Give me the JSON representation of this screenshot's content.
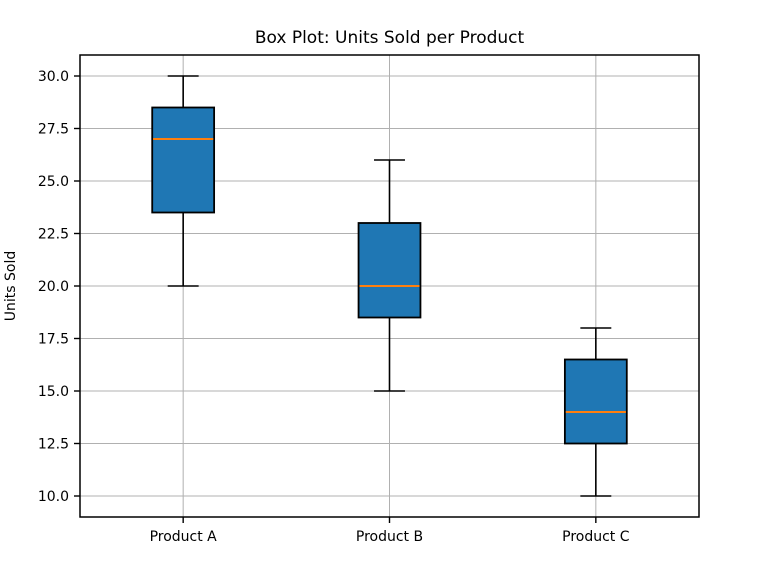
{
  "chart_data": {
    "type": "box",
    "title": "Box Plot: Units Sold per Product",
    "xlabel": "",
    "ylabel": "Units Sold",
    "categories": [
      "Product A",
      "Product B",
      "Product C"
    ],
    "series": [
      {
        "name": "Product A",
        "position": 1,
        "whisker_low": 20.0,
        "q1": 23.5,
        "median": 27.0,
        "q3": 28.5,
        "whisker_high": 30.0
      },
      {
        "name": "Product B",
        "position": 2,
        "whisker_low": 15.0,
        "q1": 18.5,
        "median": 20.0,
        "q3": 23.0,
        "whisker_high": 26.0
      },
      {
        "name": "Product C",
        "position": 3,
        "whisker_low": 10.0,
        "q1": 12.5,
        "median": 14.0,
        "q3": 16.5,
        "whisker_high": 18.0
      }
    ],
    "outliers": [],
    "yticks": [
      10.0,
      12.5,
      15.0,
      17.5,
      20.0,
      22.5,
      25.0,
      27.5,
      30.0
    ],
    "ytick_labels": [
      "10.0",
      "12.5",
      "15.0",
      "17.5",
      "20.0",
      "22.5",
      "25.0",
      "27.5",
      "30.0"
    ],
    "ylim": [
      9,
      31
    ],
    "xlim": [
      0.5,
      3.5
    ],
    "box_width": 0.3,
    "grid": true,
    "legend": false,
    "colors": {
      "box_fill": "#1f77b4",
      "box_edge": "#000000",
      "median": "#ff7f0e",
      "whisker": "#000000",
      "grid": "#b0b0b0",
      "axis": "#000000",
      "background": "#ffffff",
      "text": "#000000"
    }
  }
}
